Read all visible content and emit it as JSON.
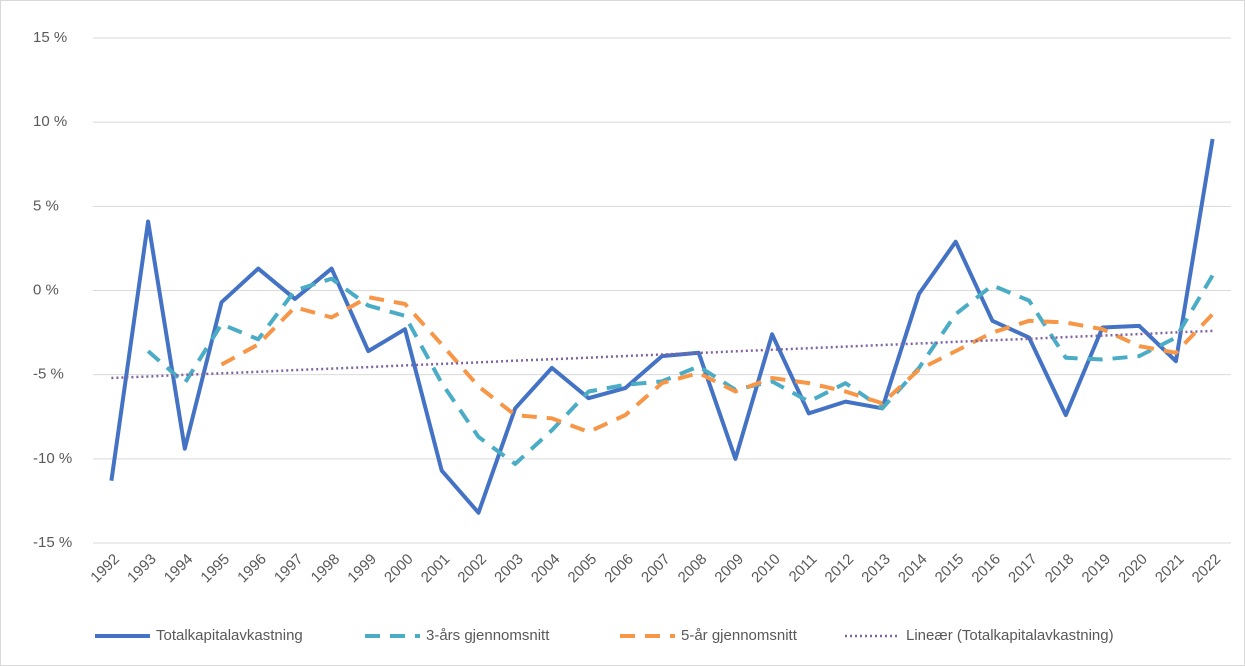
{
  "chart_data": {
    "type": "line",
    "categories": [
      "1992",
      "1993",
      "1994",
      "1995",
      "1996",
      "1997",
      "1998",
      "1999",
      "2000",
      "2001",
      "2002",
      "2003",
      "2004",
      "2005",
      "2006",
      "2007",
      "2008",
      "2009",
      "2010",
      "2011",
      "2012",
      "2013",
      "2014",
      "2015",
      "2016",
      "2017",
      "2018",
      "2019",
      "2020",
      "2021",
      "2022"
    ],
    "series": [
      {
        "name": "Totalkapitalavkastning",
        "color": "#4472c4",
        "style": "solid",
        "values": [
          -11.3,
          4.1,
          -9.4,
          -0.7,
          1.3,
          -0.5,
          1.3,
          -3.6,
          -2.3,
          -10.7,
          -13.2,
          -7.0,
          -4.6,
          -6.4,
          -5.8,
          -3.9,
          -3.7,
          -10.0,
          -2.6,
          -7.3,
          -6.6,
          -7.0,
          -0.2,
          2.9,
          -1.8,
          -2.8,
          -7.4,
          -2.2,
          -2.1,
          -4.2,
          9.0
        ]
      },
      {
        "name": "3-års gjennomsnitt",
        "color": "#4bacc6",
        "style": "dashed",
        "values": [
          null,
          -3.6,
          -5.5,
          -2.0,
          -2.9,
          0.0,
          0.7,
          -0.9,
          -1.5,
          -5.5,
          -8.7,
          -10.3,
          -8.3,
          -6.0,
          -5.6,
          -5.4,
          -4.5,
          -5.9,
          -5.4,
          -6.6,
          -5.5,
          -7.0,
          -4.6,
          -1.4,
          0.3,
          -0.6,
          -4.0,
          -4.1,
          -3.9,
          -2.8,
          0.9
        ]
      },
      {
        "name": "5-år gjennomsnitt",
        "color": "#f79646",
        "style": "dashed",
        "values": [
          null,
          null,
          null,
          -4.4,
          -3.2,
          -1.0,
          -1.6,
          -0.4,
          -0.8,
          -3.2,
          -5.7,
          -7.4,
          -7.6,
          -8.4,
          -7.4,
          -5.5,
          -4.9,
          -6.0,
          -5.2,
          -5.5,
          -6.0,
          -6.7,
          -4.7,
          -3.6,
          -2.5,
          -1.8,
          -1.9,
          -2.3,
          -3.3,
          -3.7,
          -1.4
        ]
      },
      {
        "name": "Lineær (Totalkapitalavkastning)",
        "color": "#8064a2",
        "style": "dotted",
        "values": [
          -5.2,
          -5.11,
          -5.01,
          -4.92,
          -4.83,
          -4.73,
          -4.64,
          -4.55,
          -4.45,
          -4.36,
          -4.27,
          -4.17,
          -4.08,
          -3.99,
          -3.89,
          -3.8,
          -3.71,
          -3.61,
          -3.52,
          -3.43,
          -3.33,
          -3.24,
          -3.15,
          -3.05,
          -2.96,
          -2.87,
          -2.77,
          -2.68,
          -2.59,
          -2.49,
          -2.4
        ]
      }
    ],
    "ylim": [
      -15,
      15
    ],
    "yticks": [
      {
        "value": 15,
        "label": "15 %"
      },
      {
        "value": 10,
        "label": "10 %"
      },
      {
        "value": 5,
        "label": "5 %"
      },
      {
        "value": 0,
        "label": "0 %"
      },
      {
        "value": -5,
        "label": "-5 %"
      },
      {
        "value": -10,
        "label": "-10 %"
      },
      {
        "value": -15,
        "label": "-15 %"
      }
    ],
    "grid": true,
    "legend_position": "bottom"
  }
}
